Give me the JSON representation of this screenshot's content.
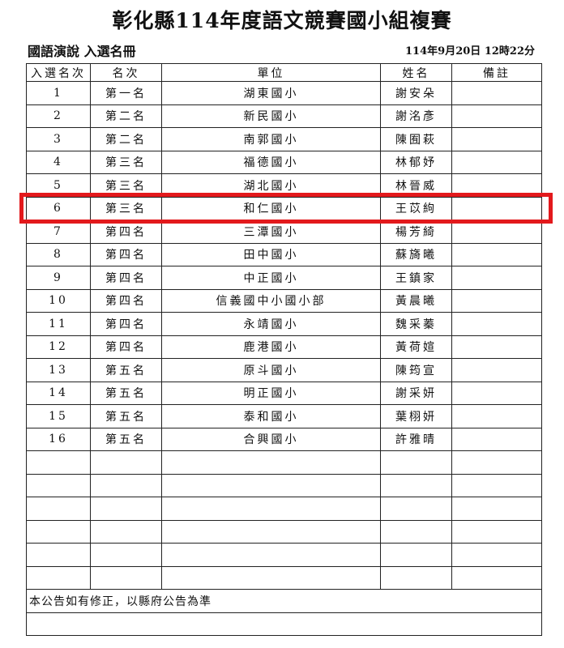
{
  "title": "彰化縣114年度語文競賽國小組複賽",
  "subtitle": "國語演說 入選名冊",
  "datetime": "114年9月20日 12時22分",
  "headers": [
    "入選名次",
    "名次",
    "單位",
    "姓名",
    "備註"
  ],
  "rows": [
    [
      "1",
      "第一名",
      "湖東國小",
      "謝安朵",
      ""
    ],
    [
      "2",
      "第二名",
      "新民國小",
      "謝洺彥",
      ""
    ],
    [
      "3",
      "第二名",
      "南郭國小",
      "陳囿萩",
      ""
    ],
    [
      "4",
      "第三名",
      "福德國小",
      "林郁妤",
      ""
    ],
    [
      "5",
      "第三名",
      "湖北國小",
      "林晉威",
      ""
    ],
    [
      "6",
      "第三名",
      "和仁國小",
      "王苡絇",
      ""
    ],
    [
      "7",
      "第四名",
      "三潭國小",
      "楊芳綺",
      ""
    ],
    [
      "8",
      "第四名",
      "田中國小",
      "蘇旖曦",
      ""
    ],
    [
      "9",
      "第四名",
      "中正國小",
      "王鎮家",
      ""
    ],
    [
      "10",
      "第四名",
      "信義國中小國小部",
      "黃晨曦",
      ""
    ],
    [
      "11",
      "第四名",
      "永靖國小",
      "魏采蓁",
      ""
    ],
    [
      "12",
      "第四名",
      "鹿港國小",
      "黃荷媗",
      ""
    ],
    [
      "13",
      "第五名",
      "原斗國小",
      "陳筠宣",
      ""
    ],
    [
      "14",
      "第五名",
      "明正國小",
      "謝采妍",
      ""
    ],
    [
      "15",
      "第五名",
      "泰和國小",
      "葉栩妍",
      ""
    ],
    [
      "16",
      "第五名",
      "合興國小",
      "許雅晴",
      ""
    ]
  ],
  "empty_rows": 6,
  "footer_note": "本公告如有修正，以縣府公告為準",
  "highlight_color": "#e3191c",
  "highlighted_row": "6"
}
